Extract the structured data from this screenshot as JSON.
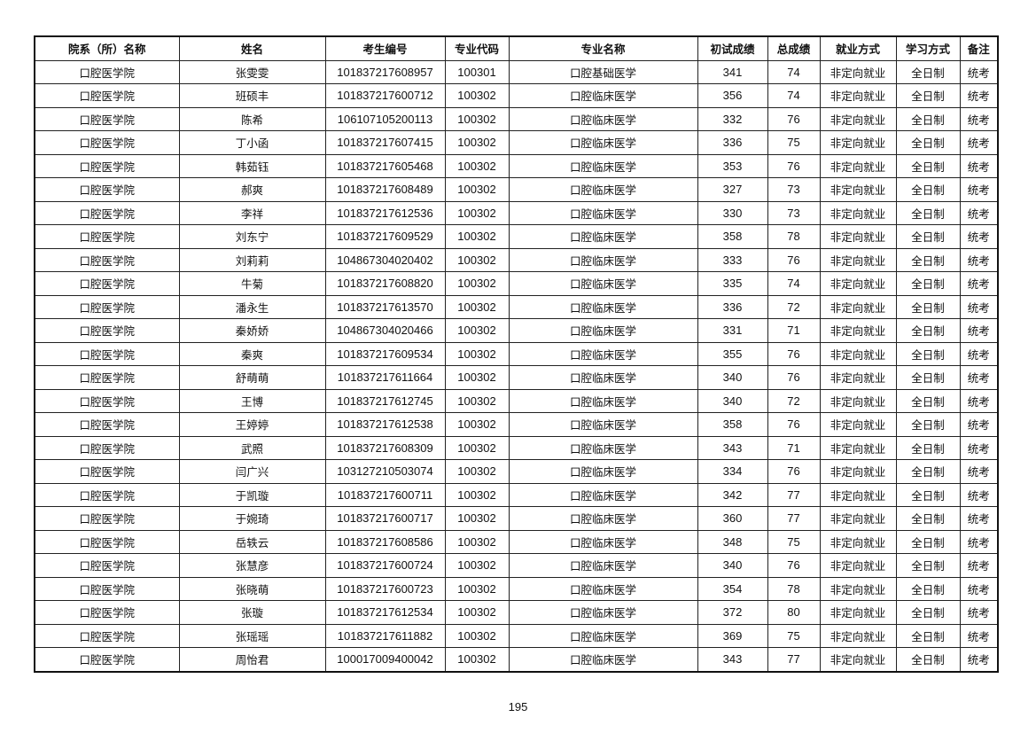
{
  "table": {
    "headers": [
      "院系（所）名称",
      "姓名",
      "考生编号",
      "专业代码",
      "专业名称",
      "初试成绩",
      "总成绩",
      "就业方式",
      "学习方式",
      "备注"
    ],
    "rows": [
      [
        "口腔医学院",
        "张雯雯",
        "101837217608957",
        "100301",
        "口腔基础医学",
        "341",
        "74",
        "非定向就业",
        "全日制",
        "统考"
      ],
      [
        "口腔医学院",
        "班硕丰",
        "101837217600712",
        "100302",
        "口腔临床医学",
        "356",
        "74",
        "非定向就业",
        "全日制",
        "统考"
      ],
      [
        "口腔医学院",
        "陈希",
        "106107105200113",
        "100302",
        "口腔临床医学",
        "332",
        "76",
        "非定向就业",
        "全日制",
        "统考"
      ],
      [
        "口腔医学院",
        "丁小函",
        "101837217607415",
        "100302",
        "口腔临床医学",
        "336",
        "75",
        "非定向就业",
        "全日制",
        "统考"
      ],
      [
        "口腔医学院",
        "韩茹钰",
        "101837217605468",
        "100302",
        "口腔临床医学",
        "353",
        "76",
        "非定向就业",
        "全日制",
        "统考"
      ],
      [
        "口腔医学院",
        "郝爽",
        "101837217608489",
        "100302",
        "口腔临床医学",
        "327",
        "73",
        "非定向就业",
        "全日制",
        "统考"
      ],
      [
        "口腔医学院",
        "李祥",
        "101837217612536",
        "100302",
        "口腔临床医学",
        "330",
        "73",
        "非定向就业",
        "全日制",
        "统考"
      ],
      [
        "口腔医学院",
        "刘东宁",
        "101837217609529",
        "100302",
        "口腔临床医学",
        "358",
        "78",
        "非定向就业",
        "全日制",
        "统考"
      ],
      [
        "口腔医学院",
        "刘莉莉",
        "104867304020402",
        "100302",
        "口腔临床医学",
        "333",
        "76",
        "非定向就业",
        "全日制",
        "统考"
      ],
      [
        "口腔医学院",
        "牛菊",
        "101837217608820",
        "100302",
        "口腔临床医学",
        "335",
        "74",
        "非定向就业",
        "全日制",
        "统考"
      ],
      [
        "口腔医学院",
        "潘永生",
        "101837217613570",
        "100302",
        "口腔临床医学",
        "336",
        "72",
        "非定向就业",
        "全日制",
        "统考"
      ],
      [
        "口腔医学院",
        "秦娇娇",
        "104867304020466",
        "100302",
        "口腔临床医学",
        "331",
        "71",
        "非定向就业",
        "全日制",
        "统考"
      ],
      [
        "口腔医学院",
        "秦爽",
        "101837217609534",
        "100302",
        "口腔临床医学",
        "355",
        "76",
        "非定向就业",
        "全日制",
        "统考"
      ],
      [
        "口腔医学院",
        "舒萌萌",
        "101837217611664",
        "100302",
        "口腔临床医学",
        "340",
        "76",
        "非定向就业",
        "全日制",
        "统考"
      ],
      [
        "口腔医学院",
        "王博",
        "101837217612745",
        "100302",
        "口腔临床医学",
        "340",
        "72",
        "非定向就业",
        "全日制",
        "统考"
      ],
      [
        "口腔医学院",
        "王婷婷",
        "101837217612538",
        "100302",
        "口腔临床医学",
        "358",
        "76",
        "非定向就业",
        "全日制",
        "统考"
      ],
      [
        "口腔医学院",
        "武照",
        "101837217608309",
        "100302",
        "口腔临床医学",
        "343",
        "71",
        "非定向就业",
        "全日制",
        "统考"
      ],
      [
        "口腔医学院",
        "闫广兴",
        "103127210503074",
        "100302",
        "口腔临床医学",
        "334",
        "76",
        "非定向就业",
        "全日制",
        "统考"
      ],
      [
        "口腔医学院",
        "于凯璇",
        "101837217600711",
        "100302",
        "口腔临床医学",
        "342",
        "77",
        "非定向就业",
        "全日制",
        "统考"
      ],
      [
        "口腔医学院",
        "于婉琦",
        "101837217600717",
        "100302",
        "口腔临床医学",
        "360",
        "77",
        "非定向就业",
        "全日制",
        "统考"
      ],
      [
        "口腔医学院",
        "岳轶云",
        "101837217608586",
        "100302",
        "口腔临床医学",
        "348",
        "75",
        "非定向就业",
        "全日制",
        "统考"
      ],
      [
        "口腔医学院",
        "张慧彦",
        "101837217600724",
        "100302",
        "口腔临床医学",
        "340",
        "76",
        "非定向就业",
        "全日制",
        "统考"
      ],
      [
        "口腔医学院",
        "张晓萌",
        "101837217600723",
        "100302",
        "口腔临床医学",
        "354",
        "78",
        "非定向就业",
        "全日制",
        "统考"
      ],
      [
        "口腔医学院",
        "张璇",
        "101837217612534",
        "100302",
        "口腔临床医学",
        "372",
        "80",
        "非定向就业",
        "全日制",
        "统考"
      ],
      [
        "口腔医学院",
        "张瑶瑶",
        "101837217611882",
        "100302",
        "口腔临床医学",
        "369",
        "75",
        "非定向就业",
        "全日制",
        "统考"
      ],
      [
        "口腔医学院",
        "周怡君",
        "100017009400042",
        "100302",
        "口腔临床医学",
        "343",
        "77",
        "非定向就业",
        "全日制",
        "统考"
      ]
    ]
  },
  "page_number": "195"
}
